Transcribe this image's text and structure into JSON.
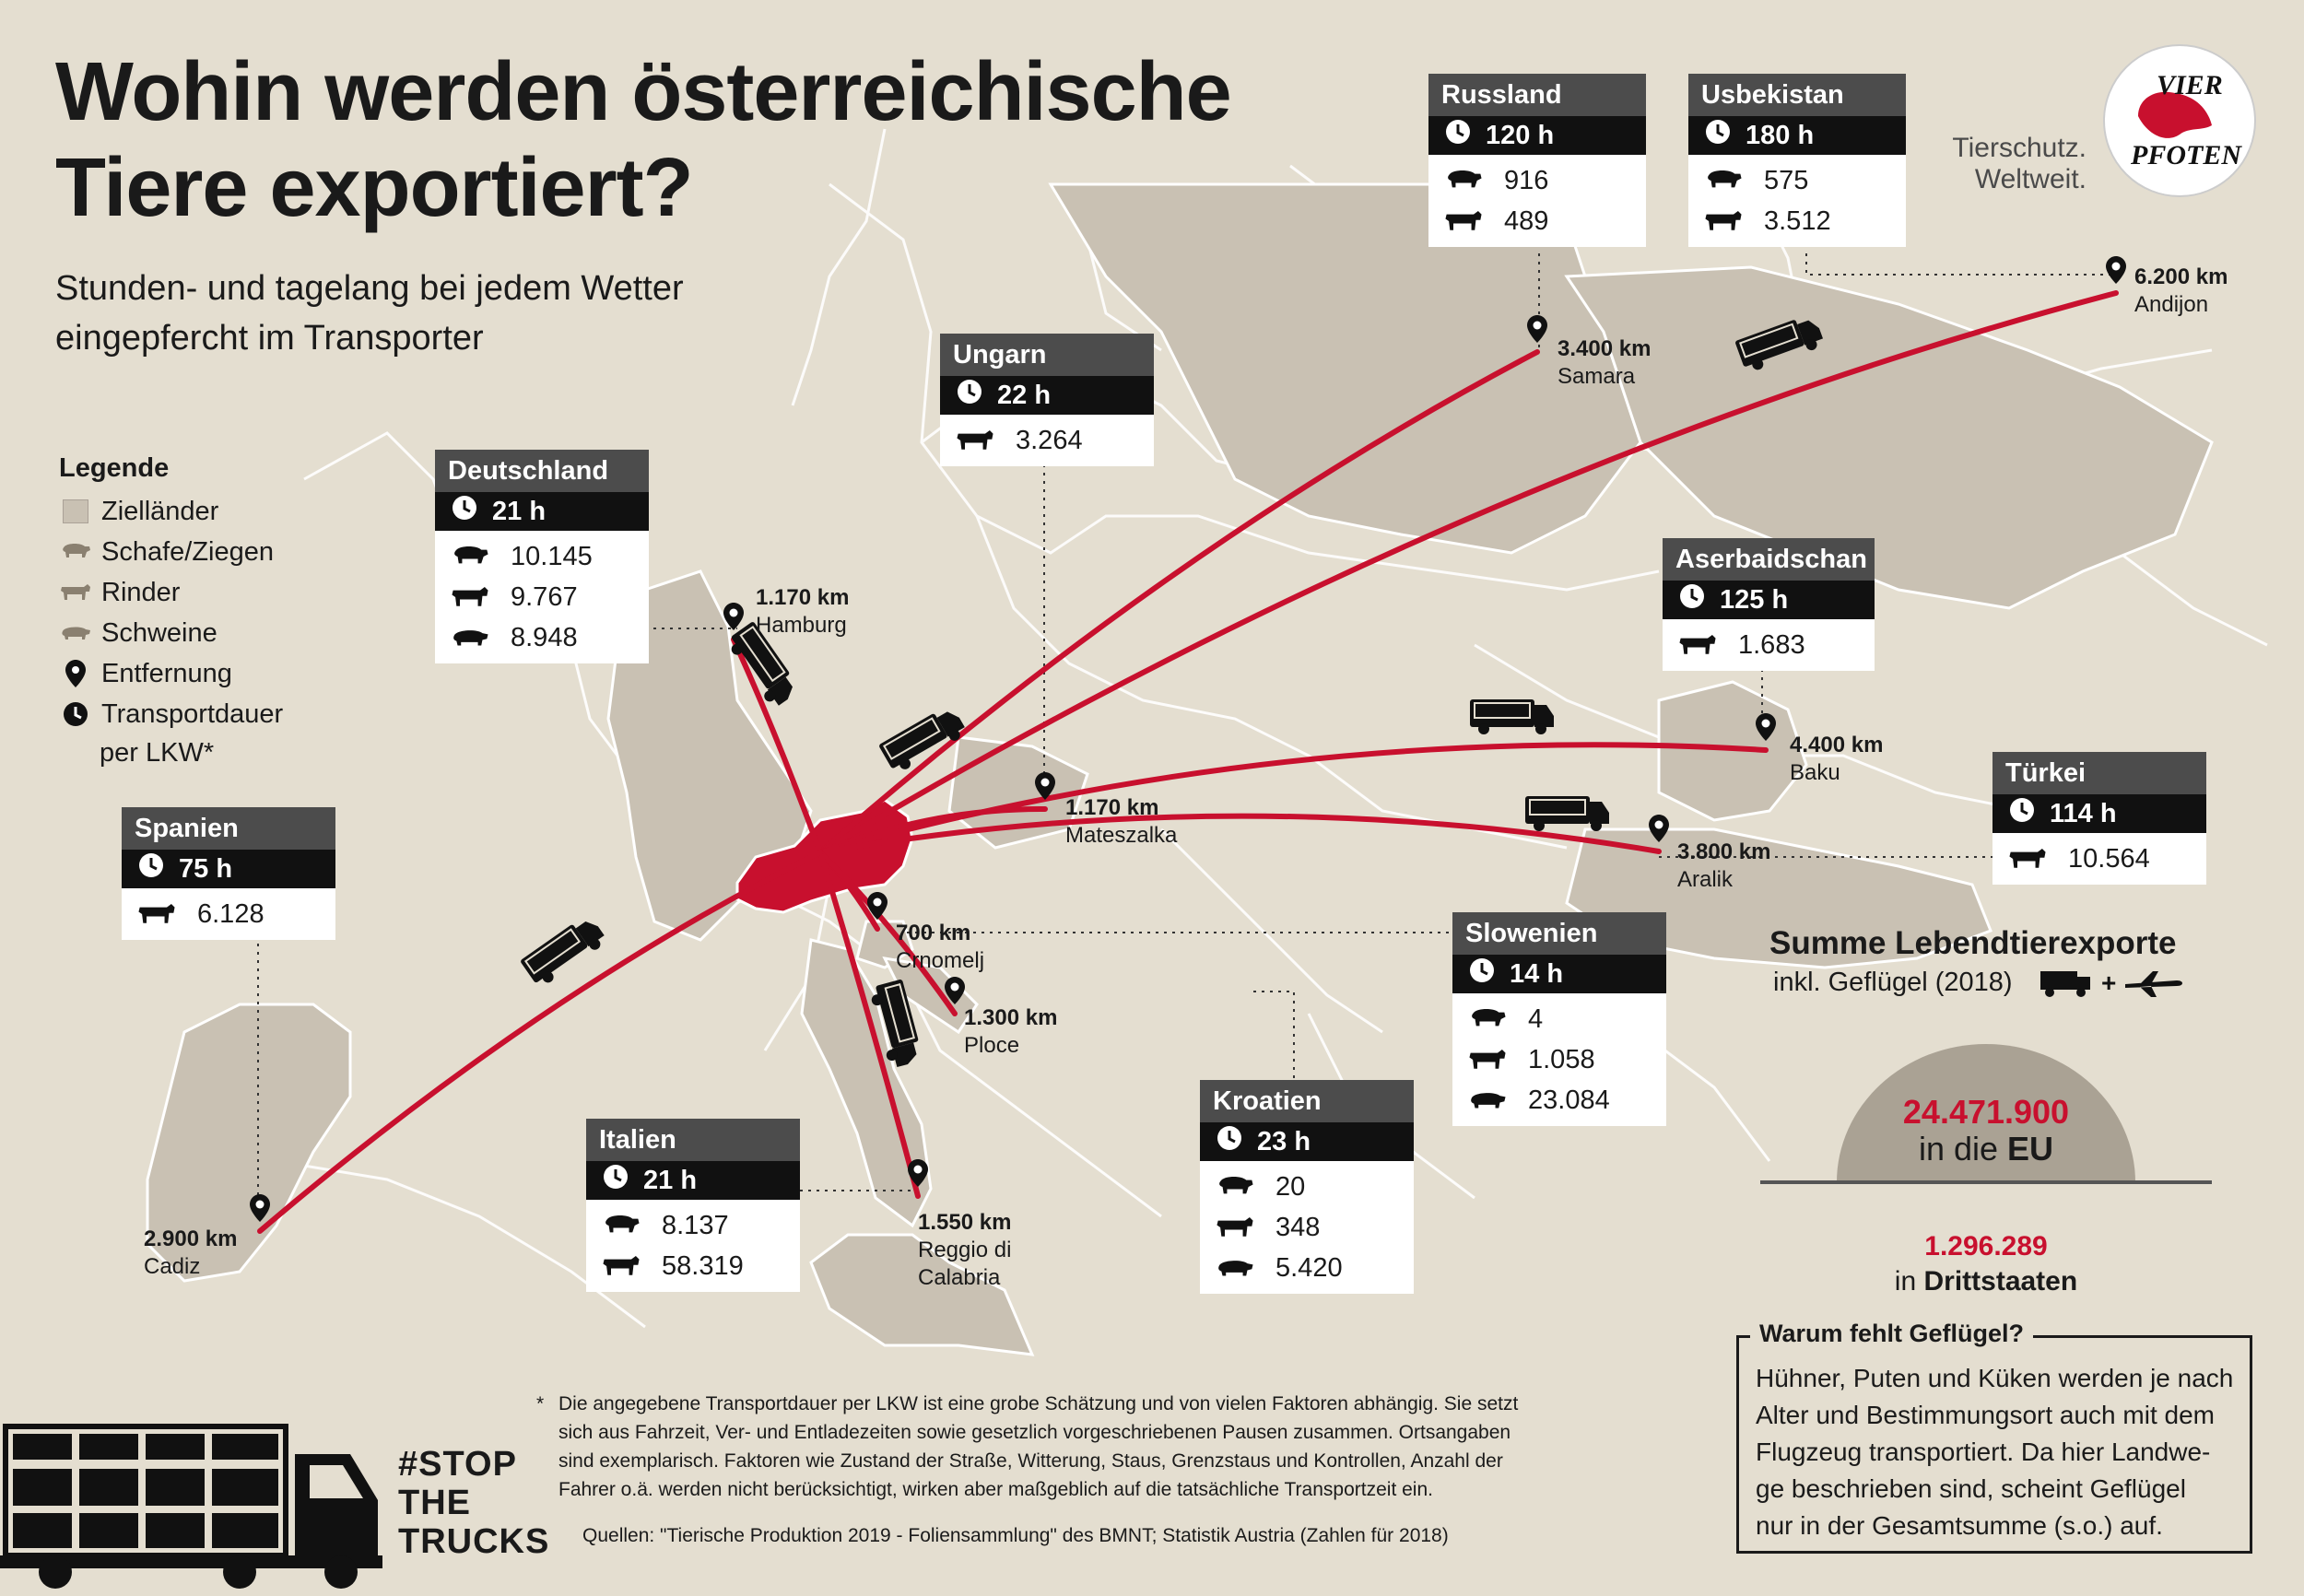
{
  "title_line1": "Wohin werden österreichische",
  "title_line2": "Tiere exportiert?",
  "subtitle_line1": "Stunden- und tagelang bei jedem Wetter",
  "subtitle_line2": "eingepfercht im Transporter",
  "legend": {
    "heading": "Legende",
    "items": [
      "Zielländer",
      "Schafe/Ziegen",
      "Rinder",
      "Schweine",
      "Entfernung",
      "Transportdauer"
    ],
    "sub": "per LKW*"
  },
  "countries": [
    {
      "name": "Russland",
      "duration": "120 h",
      "sheep": "916",
      "cattle": "489"
    },
    {
      "name": "Usbekistan",
      "duration": "180 h",
      "sheep": "575",
      "cattle": "3.512"
    },
    {
      "name": "Ungarn",
      "duration": "22 h",
      "cattle": "3.264"
    },
    {
      "name": "Deutschland",
      "duration": "21 h",
      "sheep": "10.145",
      "cattle": "9.767",
      "pigs": "8.948"
    },
    {
      "name": "Aserbaidschan",
      "duration": "125 h",
      "cattle": "1.683"
    },
    {
      "name": "Spanien",
      "duration": "75 h",
      "cattle": "6.128"
    },
    {
      "name": "Türkei",
      "duration": "114 h",
      "cattle": "10.564"
    },
    {
      "name": "Slowenien",
      "duration": "14 h",
      "sheep": "4",
      "cattle": "1.058",
      "pigs": "23.084"
    },
    {
      "name": "Kroatien",
      "duration": "23 h",
      "sheep": "20",
      "cattle": "348",
      "pigs": "5.420"
    },
    {
      "name": "Italien",
      "duration": "21 h",
      "sheep": "8.137",
      "cattle": "58.319"
    }
  ],
  "destinations": [
    {
      "km": "3.400 km",
      "city": "Samara"
    },
    {
      "km": "6.200 km",
      "city": "Andijon"
    },
    {
      "km": "1.170 km",
      "city": "Hamburg"
    },
    {
      "km": "1.170 km",
      "city": "Mateszalka"
    },
    {
      "km": "4.400 km",
      "city": "Baku"
    },
    {
      "km": "3.800 km",
      "city": "Aralik"
    },
    {
      "km": "700 km",
      "city": "Crnomelj"
    },
    {
      "km": "1.300 km",
      "city": "Ploce"
    },
    {
      "km": "1.550 km",
      "city": "Reggio di",
      "city2": "Calabria"
    },
    {
      "km": "2.900 km",
      "city": "Cadiz"
    }
  ],
  "logo": {
    "text1": "Tierschutz.",
    "text2": "Weltweit.",
    "brand1": "VIER",
    "brand2": "PFOTEN"
  },
  "summary": {
    "heading": "Summe Lebendtierexporte",
    "sub": "inkl. Geflügel (2018)",
    "eu_value": "24.471.900",
    "eu_pre": "in die ",
    "eu_bold": "EU",
    "third_value": "1.296.289",
    "third_pre": "in ",
    "third_bold": "Drittstaaten"
  },
  "why": {
    "heading": "Warum fehlt Geflügel?",
    "lines": [
      "Hühner, Puten und Küken werden je nach",
      "Alter und Bestimmungsort auch mit dem",
      "Flugzeug transportiert. Da hier Landwe-",
      "ge beschrieben sind, scheint Geflügel",
      "nur in der Gesamtsumme (s.o.) auf."
    ]
  },
  "footnote": {
    "star": "*",
    "lines": [
      "Die angegebene Transportdauer per LKW ist eine grobe Schätzung und von vielen Faktoren abhängig. Sie setzt",
      "sich aus Fahrzeit, Ver- und Entladezeiten sowie gesetzlich vorgeschriebenen Pausen zusammen. Ortsangaben",
      "sind exemplarisch. Faktoren wie Zustand der Straße, Witterung, Staus, Grenzstaus und Kontrollen, Anzahl der",
      "Fahrer o.ä. werden nicht berücksichtigt, wirken aber maßgeblich auf die tatsächliche Transportzeit ein."
    ],
    "sources": "Quellen: \"Tierische Produktion 2019 - Foliensammlung\" des BMNT; Statistik Austria (Zahlen für 2018)"
  },
  "campaign": [
    "#STOP",
    "THE",
    "TRUCKS"
  ],
  "colors": {
    "route": "#c8102e",
    "land": "#c9c1b3",
    "sea": "#e4ded0",
    "box_header": "#4c4c4c"
  }
}
